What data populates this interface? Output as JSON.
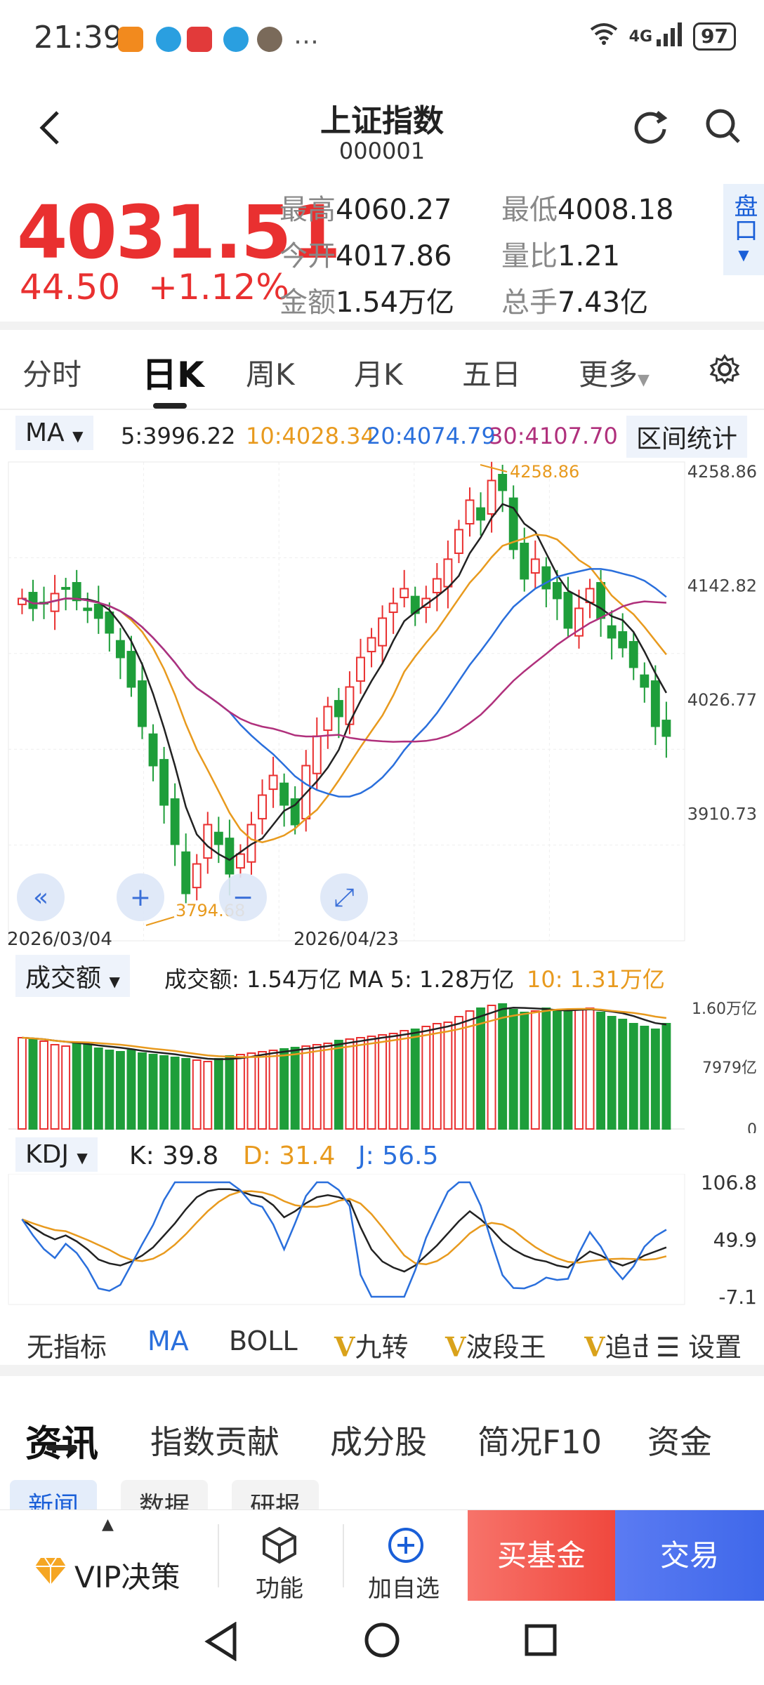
{
  "status": {
    "time": "21:39",
    "network": "4G",
    "battery": "97"
  },
  "header": {
    "title": "上证指数",
    "code": "000001"
  },
  "quote": {
    "price": "4031.51",
    "change": "44.50",
    "change_pct": "+1.12%",
    "stats": [
      {
        "label": "最高",
        "value": "4060.27"
      },
      {
        "label": "最低",
        "value": "4008.18"
      },
      {
        "label": "今开",
        "value": "4017.86"
      },
      {
        "label": "量比",
        "value": "1.21"
      },
      {
        "label": "金额",
        "value": "1.54万亿"
      },
      {
        "label": "总手",
        "value": "7.43亿"
      }
    ],
    "pankou": "盘口"
  },
  "period_tabs": [
    "分时",
    "日K",
    "周K",
    "月K",
    "五日",
    "更多"
  ],
  "ma_row": {
    "selector": "MA",
    "ma5": "5:3996.22",
    "ma10": "10:4028.34",
    "ma20": "20:4074.79",
    "ma30": "30:4107.70",
    "stats_button": "区间统计"
  },
  "kline": {
    "y_labels": [
      "4258.86",
      "4142.82",
      "4026.77",
      "3910.73",
      "3794.68"
    ],
    "high_label": "4258.86",
    "low_label": "3794.68",
    "dates": [
      "2026/03/04",
      "2026/04/23"
    ]
  },
  "volume_row": {
    "selector": "成交额",
    "amount": "成交额: 1.54万亿",
    "ma5": "MA 5: 1.28万亿",
    "ma10": "10: 1.31万亿",
    "y_labels": [
      "1.60万亿",
      "7979亿",
      "0"
    ]
  },
  "kdj_row": {
    "selector": "KDJ",
    "k": "K: 39.8",
    "d": "D: 31.4",
    "j": "J: 56.5",
    "y_labels": [
      "106.8",
      "49.9",
      "-7.1"
    ]
  },
  "indicator_tabs": [
    "无指标",
    "MA",
    "BOLL",
    "九转",
    "波段王",
    "追击",
    "设置"
  ],
  "content_tabs": [
    "资讯",
    "指数贡献",
    "成分股",
    "简况F10",
    "资金"
  ],
  "sub_tabs": [
    "新闻",
    "数据",
    "研报"
  ],
  "bottom_bar": {
    "vip": "VIP决策",
    "func": "功能",
    "add": "加自选",
    "buy_fund": "买基金",
    "trade": "交易"
  },
  "colors": {
    "up": "#e93030",
    "down": "#1e9e3a",
    "ma5": "#222222",
    "ma10": "#e89a1e",
    "ma20": "#2a6fdc",
    "ma30": "#b0307c"
  }
}
